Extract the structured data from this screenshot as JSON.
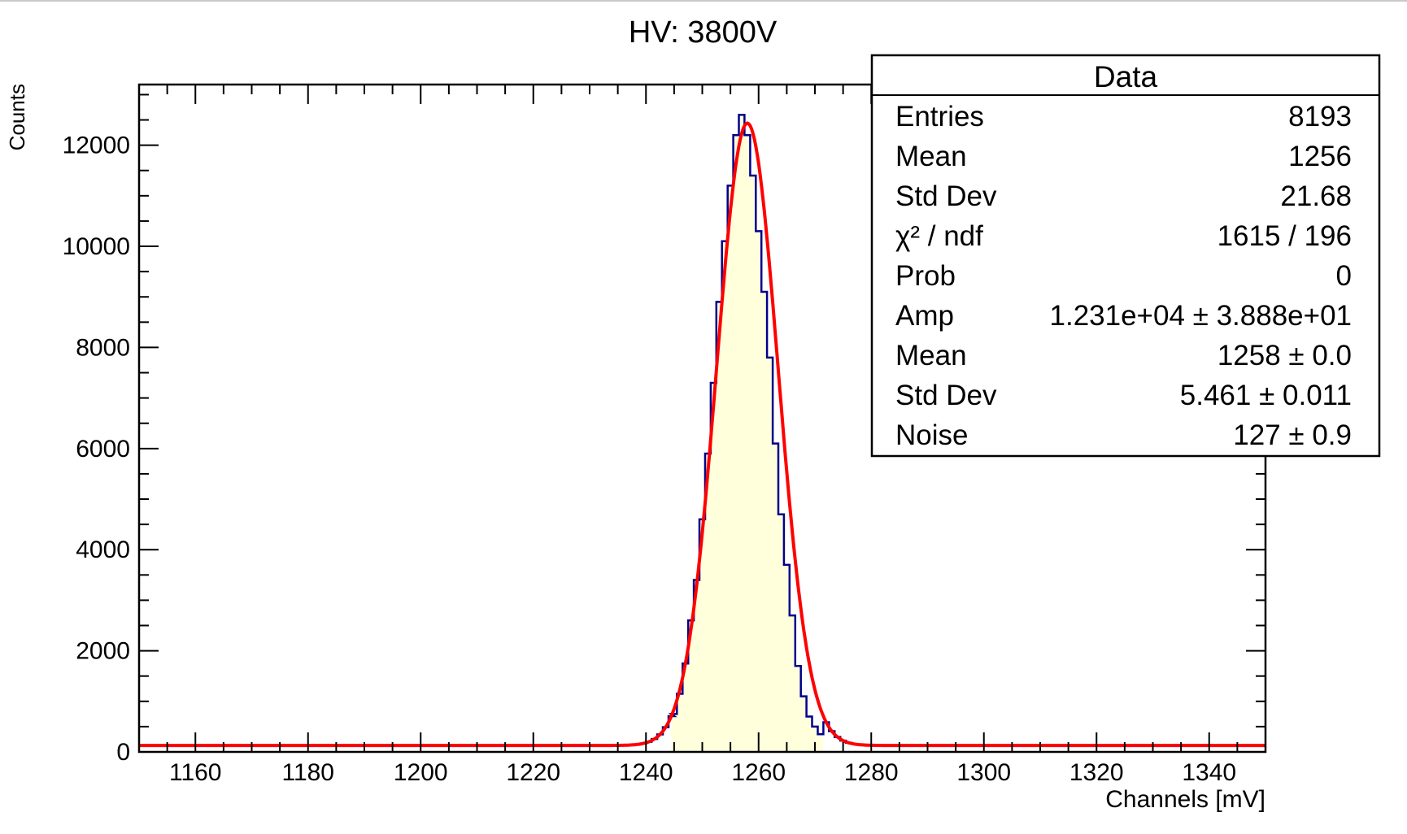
{
  "chart_data": {
    "type": "bar",
    "title": "HV: 3800V",
    "xlabel": "Channels [mV]",
    "ylabel": "Counts",
    "xlim": [
      1150,
      1350
    ],
    "ylim": [
      0,
      13200
    ],
    "x_ticks": [
      "1160",
      "1180",
      "1200",
      "1220",
      "1240",
      "1260",
      "1280",
      "1300",
      "1320",
      "1340"
    ],
    "y_ticks": [
      "0",
      "2000",
      "4000",
      "6000",
      "8000",
      "10000",
      "12000"
    ],
    "grid": false,
    "legend_placement": "top-right",
    "histogram_color": "#00008b",
    "fill_color": "#ffffdc",
    "fit_color": "#ff0000",
    "bin_width": 1,
    "fit": {
      "amp": 12310,
      "mean": 1258,
      "sigma": 5.461,
      "noise": 127
    },
    "bins": [
      {
        "x": 1245,
        "y": 750
      },
      {
        "x": 1246,
        "y": 1150
      },
      {
        "x": 1247,
        "y": 1750
      },
      {
        "x": 1248,
        "y": 2600
      },
      {
        "x": 1249,
        "y": 3400
      },
      {
        "x": 1250,
        "y": 4600
      },
      {
        "x": 1251,
        "y": 5900
      },
      {
        "x": 1252,
        "y": 7300
      },
      {
        "x": 1253,
        "y": 8900
      },
      {
        "x": 1254,
        "y": 10100
      },
      {
        "x": 1255,
        "y": 11200
      },
      {
        "x": 1256,
        "y": 12200
      },
      {
        "x": 1257,
        "y": 12600
      },
      {
        "x": 1258,
        "y": 12200
      },
      {
        "x": 1259,
        "y": 11400
      },
      {
        "x": 1260,
        "y": 10300
      },
      {
        "x": 1261,
        "y": 9100
      },
      {
        "x": 1262,
        "y": 7800
      },
      {
        "x": 1263,
        "y": 6100
      },
      {
        "x": 1264,
        "y": 4700
      },
      {
        "x": 1265,
        "y": 3700
      },
      {
        "x": 1266,
        "y": 2700
      },
      {
        "x": 1267,
        "y": 1700
      },
      {
        "x": 1268,
        "y": 1100
      },
      {
        "x": 1269,
        "y": 700
      },
      {
        "x": 1270,
        "y": 500
      },
      {
        "x": 1271,
        "y": 350
      }
    ],
    "stats_box": {
      "title": "Data",
      "rows": [
        {
          "label": "Entries",
          "value": "8193"
        },
        {
          "label": "Mean",
          "value": "1256"
        },
        {
          "label": "Std Dev",
          "value": "21.68"
        },
        {
          "label": "χ² / ndf",
          "value": "1615 / 196"
        },
        {
          "label": "Prob",
          "value": "0"
        },
        {
          "label": "Amp",
          "value": "1.231e+04 ± 3.888e+01"
        },
        {
          "label": "Mean",
          "value": "1258 ± 0.0"
        },
        {
          "label": "Std Dev",
          "value": "5.461 ± 0.011"
        },
        {
          "label": "Noise",
          "value": "127 ± 0.9"
        }
      ]
    }
  }
}
